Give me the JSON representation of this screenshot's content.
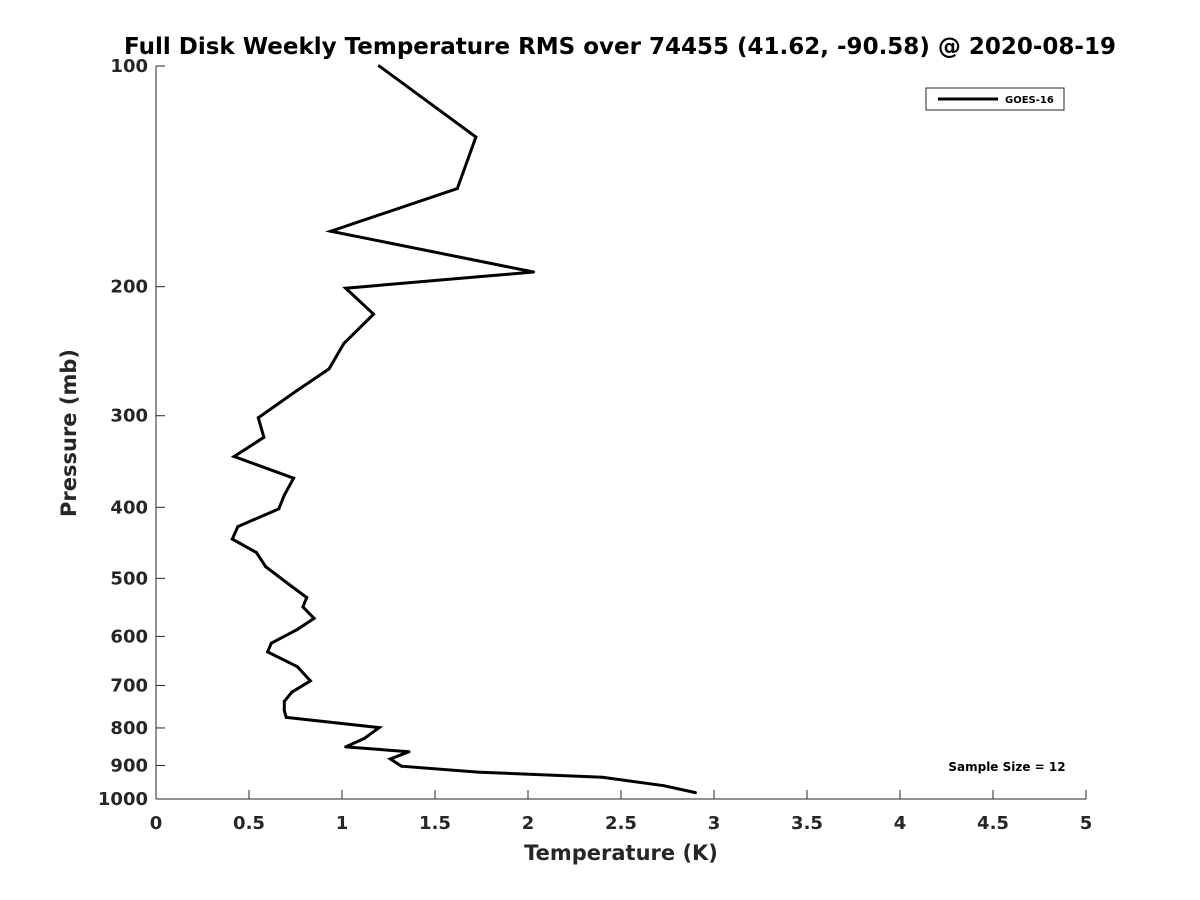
{
  "chart_data": {
    "type": "line",
    "title": "Full Disk Weekly Temperature RMS over 74455 (41.62, -90.58) @ 2020-08-19",
    "xlabel": "Temperature (K)",
    "ylabel": "Pressure (mb)",
    "xlim": [
      0,
      5
    ],
    "ylim": [
      100,
      1000
    ],
    "y_scale": "log",
    "y_reversed": true,
    "x_ticks": [
      "0",
      "0.5",
      "1",
      "1.5",
      "2",
      "2.5",
      "3",
      "3.5",
      "4",
      "4.5",
      "5"
    ],
    "y_ticks": [
      "100",
      "200",
      "300",
      "400",
      "500",
      "600",
      "700",
      "800",
      "900",
      "1000"
    ],
    "grid": false,
    "legend_position": "top-right",
    "annotation": "Sample Size = 12",
    "series": [
      {
        "name": "GOES-16",
        "color": "#000000",
        "points": [
          [
            1.2,
            100
          ],
          [
            1.72,
            125
          ],
          [
            1.62,
            147
          ],
          [
            0.94,
            168
          ],
          [
            2.03,
            191
          ],
          [
            1.02,
            201
          ],
          [
            1.17,
            218
          ],
          [
            1.01,
            239
          ],
          [
            0.93,
            259
          ],
          [
            0.76,
            277
          ],
          [
            0.55,
            302
          ],
          [
            0.58,
            321
          ],
          [
            0.42,
            341
          ],
          [
            0.74,
            365
          ],
          [
            0.69,
            385
          ],
          [
            0.66,
            402
          ],
          [
            0.44,
            425
          ],
          [
            0.41,
            442
          ],
          [
            0.54,
            461
          ],
          [
            0.59,
            482
          ],
          [
            0.73,
            513
          ],
          [
            0.81,
            531
          ],
          [
            0.79,
            547
          ],
          [
            0.85,
            567
          ],
          [
            0.76,
            587
          ],
          [
            0.62,
            613
          ],
          [
            0.6,
            630
          ],
          [
            0.76,
            660
          ],
          [
            0.83,
            690
          ],
          [
            0.73,
            715
          ],
          [
            0.69,
            736
          ],
          [
            0.69,
            757
          ],
          [
            0.7,
            774
          ],
          [
            1.2,
            799
          ],
          [
            1.12,
            827
          ],
          [
            1.02,
            849
          ],
          [
            1.36,
            862
          ],
          [
            1.26,
            882
          ],
          [
            1.32,
            902
          ],
          [
            1.73,
            919
          ],
          [
            2.4,
            934
          ],
          [
            2.73,
            959
          ],
          [
            2.9,
            980
          ]
        ]
      }
    ]
  }
}
